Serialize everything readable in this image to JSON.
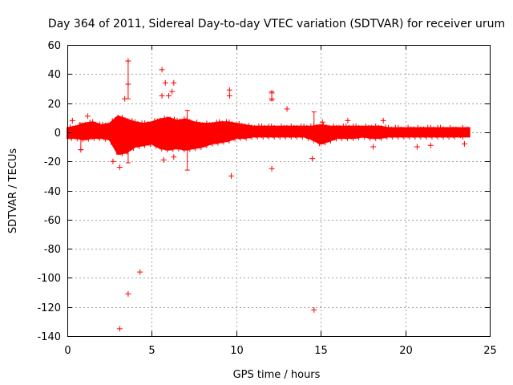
{
  "chart_data": {
    "type": "scatter",
    "title": "Day 364 of 2011, Sidereal Day-to-day VTEC variation (SDTVAR) for receiver urum",
    "xlabel": "GPS time / hours",
    "ylabel": "SDTVAR / TECUs",
    "xlim": [
      0,
      25
    ],
    "ylim": [
      -140,
      60
    ],
    "xticks": [
      "0",
      "5",
      "10",
      "15",
      "20",
      "25"
    ],
    "yticks": [
      "60",
      "40",
      "20",
      "0",
      "-20",
      "-40",
      "-60",
      "-80",
      "-100",
      "-120",
      "-140"
    ],
    "grid": true,
    "color": "#ff0000",
    "marker": "+",
    "band": {
      "description": "dense red band of error bars",
      "x": [
        0.0,
        0.5,
        1.0,
        1.5,
        2.0,
        2.5,
        3.0,
        3.5,
        4.0,
        4.5,
        5.0,
        5.5,
        6.0,
        6.5,
        7.0,
        7.5,
        8.0,
        8.5,
        9.0,
        9.5,
        10.0,
        10.5,
        11.0,
        11.5,
        12.0,
        12.5,
        13.0,
        13.5,
        14.0,
        14.5,
        15.0,
        15.5,
        16.0,
        16.5,
        17.0,
        17.5,
        18.0,
        18.5,
        19.0,
        19.5,
        20.0,
        20.5,
        21.0,
        21.5,
        22.0,
        22.5,
        23.0,
        23.8
      ],
      "upper": [
        3,
        4,
        6,
        7,
        5,
        6,
        11,
        9,
        7,
        6,
        7,
        9,
        10,
        8,
        9,
        7,
        6,
        6,
        7,
        7,
        6,
        5,
        4,
        4,
        4,
        4,
        4,
        4,
        4,
        4,
        5,
        4,
        4,
        4,
        4,
        4,
        4,
        4,
        3,
        3,
        3,
        3,
        3,
        3,
        3,
        3,
        3,
        3
      ],
      "lower": [
        -4,
        -4,
        -5,
        -4,
        -4,
        -5,
        -15,
        -14,
        -10,
        -9,
        -8,
        -11,
        -12,
        -11,
        -12,
        -11,
        -10,
        -8,
        -7,
        -6,
        -4,
        -4,
        -3,
        -3,
        -3,
        -3,
        -3,
        -3,
        -3,
        -5,
        -8,
        -6,
        -4,
        -4,
        -4,
        -3,
        -4,
        -4,
        -3,
        -3,
        -3,
        -3,
        -3,
        -3,
        -3,
        -3,
        -3,
        -3
      ]
    },
    "error_bars": [
      {
        "x": 3.6,
        "low": 23,
        "high": 49
      },
      {
        "x": 3.6,
        "low": -21,
        "high": -3
      },
      {
        "x": 7.1,
        "low": -26,
        "high": 15
      },
      {
        "x": 14.6,
        "low": -5,
        "high": 14
      },
      {
        "x": 0.8,
        "low": -12,
        "high": 6
      },
      {
        "x": 12.1,
        "low": 22,
        "high": 28
      }
    ],
    "outliers": [
      {
        "x": 3.1,
        "y": -135
      },
      {
        "x": 3.6,
        "y": -111
      },
      {
        "x": 4.3,
        "y": -96
      },
      {
        "x": 14.6,
        "y": -122
      },
      {
        "x": 3.6,
        "y": 49
      },
      {
        "x": 3.6,
        "y": 33
      },
      {
        "x": 3.4,
        "y": 23
      },
      {
        "x": 3.1,
        "y": -24
      },
      {
        "x": 5.6,
        "y": 43
      },
      {
        "x": 5.8,
        "y": 34
      },
      {
        "x": 6.3,
        "y": 34
      },
      {
        "x": 5.6,
        "y": 25
      },
      {
        "x": 6.0,
        "y": 25
      },
      {
        "x": 6.2,
        "y": 28
      },
      {
        "x": 9.6,
        "y": 29
      },
      {
        "x": 9.6,
        "y": 25
      },
      {
        "x": 9.7,
        "y": -30
      },
      {
        "x": 12.1,
        "y": 27
      },
      {
        "x": 12.1,
        "y": 23
      },
      {
        "x": 12.1,
        "y": -25
      },
      {
        "x": 13.0,
        "y": 16
      },
      {
        "x": 5.7,
        "y": -19
      },
      {
        "x": 6.3,
        "y": -17
      },
      {
        "x": 2.7,
        "y": -20
      },
      {
        "x": 0.8,
        "y": -12
      },
      {
        "x": 0.3,
        "y": 8
      },
      {
        "x": 1.2,
        "y": 11
      },
      {
        "x": 16.6,
        "y": 8
      },
      {
        "x": 18.7,
        "y": 8
      },
      {
        "x": 18.1,
        "y": -10
      },
      {
        "x": 20.7,
        "y": -10
      },
      {
        "x": 21.5,
        "y": -9
      },
      {
        "x": 23.5,
        "y": -8
      },
      {
        "x": 15.1,
        "y": 7
      },
      {
        "x": 14.5,
        "y": -18
      }
    ]
  }
}
